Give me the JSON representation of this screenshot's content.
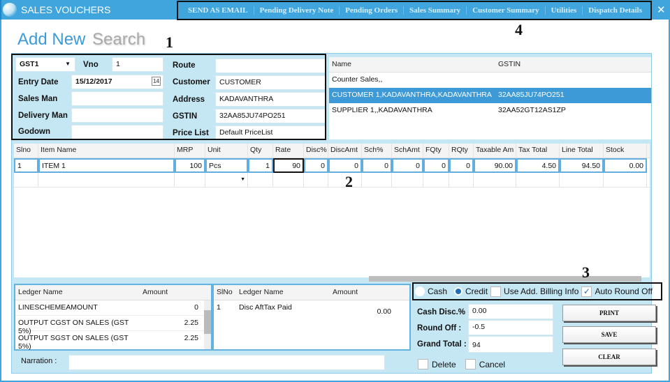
{
  "window": {
    "title": "SALES VOUCHERS",
    "close_icon": "close-icon"
  },
  "menu": [
    "SEND AS EMAIL",
    "Pending Delivery Note",
    "Pending Orders",
    "Sales Summary",
    "Customer Summary",
    "Utilities",
    "Dispatch Details"
  ],
  "tabs": {
    "add_new": "Add New",
    "search": "Search"
  },
  "annotations": [
    "1",
    "2",
    "3",
    "4"
  ],
  "form": {
    "series": "GST1",
    "vno_label": "Vno",
    "vno": "1",
    "entry_date_label": "Entry Date",
    "entry_date": "15/12/2017",
    "sales_man_label": "Sales Man",
    "delivery_man_label": "Delivery Man",
    "godown_label": "Godown",
    "route_label": "Route",
    "customer_label": "Customer",
    "customer": "CUSTOMER",
    "address_label": "Address",
    "address": "KADAVANTHRA",
    "gstin_label": "GSTIN",
    "gstin": "32AA85JU74PO251",
    "price_list_label": "Price List",
    "price_list": "Default PriceList",
    "calendar_text": "14"
  },
  "customers": {
    "headers": [
      "Name",
      "GSTIN"
    ],
    "rows": [
      [
        "Counter Sales,,",
        ""
      ],
      [
        "CUSTOMER 1,KADAVANTHRA,KADAVANTHRA",
        "32AA85JU74PO251"
      ],
      [
        "SUPPLIER 1,,KADAVANTHRA",
        "32AA52GT12AS1ZP"
      ]
    ],
    "selected": 1
  },
  "items": {
    "headers": [
      "Slno",
      "Item Name",
      "MRP",
      "Unit",
      "Qty",
      "Rate",
      "Disc%",
      "DiscAmt",
      "Sch%",
      "SchAmt",
      "FQty",
      "RQty",
      "Taxable Am",
      "Tax Total",
      "Line Total",
      "Stock"
    ],
    "rows": [
      [
        "1",
        "ITEM 1",
        "100",
        "Pcs",
        "1",
        "90",
        "0",
        "0",
        "0",
        "0",
        "0",
        "0",
        "90.00",
        "4.50",
        "94.50",
        "0.00"
      ]
    ]
  },
  "ledger": {
    "headers": [
      "Ledger Name",
      "Amount"
    ],
    "rows": [
      [
        "LINESCHEMEAMOUNT",
        "0"
      ],
      [
        "OUTPUT CGST ON SALES (GST 5%)",
        "2.25"
      ],
      [
        "OUTPUT SGST ON SALES (GST 5%)",
        "2.25"
      ]
    ]
  },
  "ledger2": {
    "headers": [
      "SlNo",
      "Ledger Name",
      "Amount"
    ],
    "rows": [
      [
        "1",
        "Disc AftTax Paid",
        "0.00"
      ]
    ]
  },
  "options": {
    "cash": "Cash",
    "credit": "Credit",
    "payment_selected": "Credit",
    "add_billing": "Use Add. Billing Info",
    "add_billing_checked": false,
    "auto_round": "Auto Round Off",
    "auto_round_checked": true
  },
  "totals": {
    "cash_disc_label": "Cash Disc.% :",
    "cash_disc": "0.00",
    "round_off_label": "Round Off :",
    "round_off": "-0.5",
    "grand_total_label": "Grand Total :",
    "grand_total": "94"
  },
  "buttons": {
    "print": "PRINT",
    "save": "SAVE",
    "clear": "CLEAR"
  },
  "footer": {
    "narration_label": "Narration :",
    "delete": "Delete",
    "cancel": "Cancel"
  }
}
